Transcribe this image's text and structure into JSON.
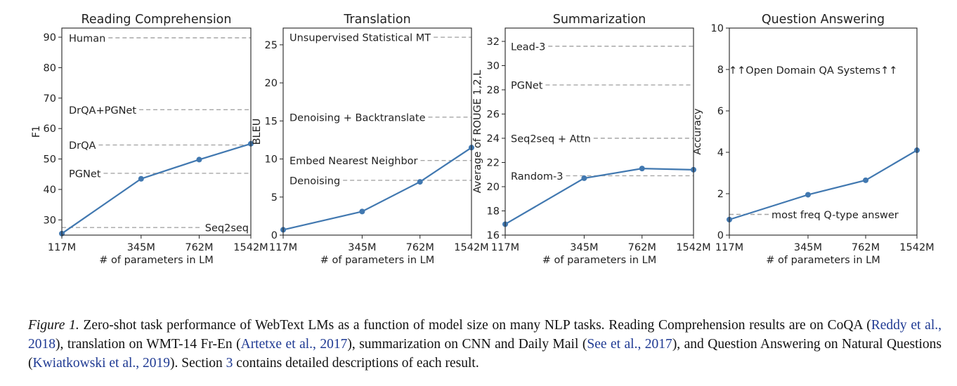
{
  "chart_data": [
    {
      "type": "line",
      "title": "Reading Comprehension",
      "xlabel": "# of parameters in LM",
      "ylabel": "F1",
      "categories": [
        "117M",
        "345M",
        "762M",
        "1542M"
      ],
      "x": [
        117,
        345,
        762,
        1542
      ],
      "x_scale": "log",
      "ylim": [
        25,
        93
      ],
      "yticks": [
        30,
        40,
        50,
        60,
        70,
        80,
        90
      ],
      "values": [
        25.5,
        43.5,
        49.8,
        55.0
      ],
      "baselines": [
        {
          "label": "Human",
          "value": 89.8
        },
        {
          "label": "DrQA+PGNet",
          "value": 66.2
        },
        {
          "label": "DrQA",
          "value": 54.6
        },
        {
          "label": "PGNet",
          "value": 45.3
        },
        {
          "label": "Seq2seq",
          "value": 27.5
        }
      ]
    },
    {
      "type": "line",
      "title": "Translation",
      "xlabel": "# of parameters in LM",
      "ylabel": "BLEU",
      "categories": [
        "117M",
        "345M",
        "762M",
        "1542M"
      ],
      "x": [
        117,
        345,
        762,
        1542
      ],
      "x_scale": "log",
      "ylim": [
        0,
        27.2
      ],
      "yticks": [
        0,
        5,
        10,
        15,
        20,
        25
      ],
      "values": [
        0.7,
        3.1,
        7.0,
        11.5
      ],
      "baselines": [
        {
          "label": "Unsupervised Statistical MT",
          "value": 26.0
        },
        {
          "label": "Denoising + Backtranslate",
          "value": 15.5
        },
        {
          "label": "Embed Nearest Neighbor",
          "value": 9.8
        },
        {
          "label": "Denoising",
          "value": 7.2
        }
      ]
    },
    {
      "type": "line",
      "title": "Summarization",
      "xlabel": "# of parameters in LM",
      "ylabel": "Average of ROUGE 1,2,L",
      "categories": [
        "117M",
        "345M",
        "762M",
        "1542M"
      ],
      "x": [
        117,
        345,
        762,
        1542
      ],
      "x_scale": "log",
      "ylim": [
        16,
        33.1
      ],
      "yticks": [
        16,
        18,
        20,
        22,
        24,
        26,
        28,
        30,
        32
      ],
      "values": [
        16.9,
        20.7,
        21.5,
        21.4
      ],
      "baselines": [
        {
          "label": "Lead-3",
          "value": 31.6
        },
        {
          "label": "PGNet",
          "value": 28.4
        },
        {
          "label": "Seq2seq + Attn",
          "value": 24.0
        },
        {
          "label": "Random-3",
          "value": 20.9
        }
      ]
    },
    {
      "type": "line",
      "title": "Question Answering",
      "xlabel": "# of parameters in LM",
      "ylabel": "Accuracy",
      "categories": [
        "117M",
        "345M",
        "762M",
        "1542M"
      ],
      "x": [
        117,
        345,
        762,
        1542
      ],
      "x_scale": "log",
      "ylim": [
        0,
        10
      ],
      "yticks": [
        0,
        2,
        4,
        6,
        8,
        10
      ],
      "values": [
        0.75,
        1.95,
        2.65,
        4.1
      ],
      "baselines": [
        {
          "label": "most freq Q-type answer",
          "value": 1.0
        }
      ],
      "annotation": "↑↑Open Domain QA Systems↑↑"
    }
  ],
  "style": {
    "line_color": "#4178b0",
    "baseline_color": "#a6a6a6",
    "axis_color": "#222222"
  },
  "caption": {
    "lead": "Figure 1.",
    "t1": " Zero-shot task performance of WebText LMs as a function of model size on many NLP tasks. Reading Comprehension results are on CoQA (",
    "r1": "Reddy et al., 2018",
    "t2": "), translation on WMT-14 Fr-En (",
    "r2": "Artetxe et al., 2017",
    "t3": "), summarization on CNN and Daily Mail (",
    "r3": "See et al., 2017",
    "t4": "), and Question Answering on Natural Questions (",
    "r4": "Kwiatkowski et al., 2019",
    "t5": "). Section ",
    "r5": "3",
    "t6": " contains detailed descriptions of each result."
  }
}
